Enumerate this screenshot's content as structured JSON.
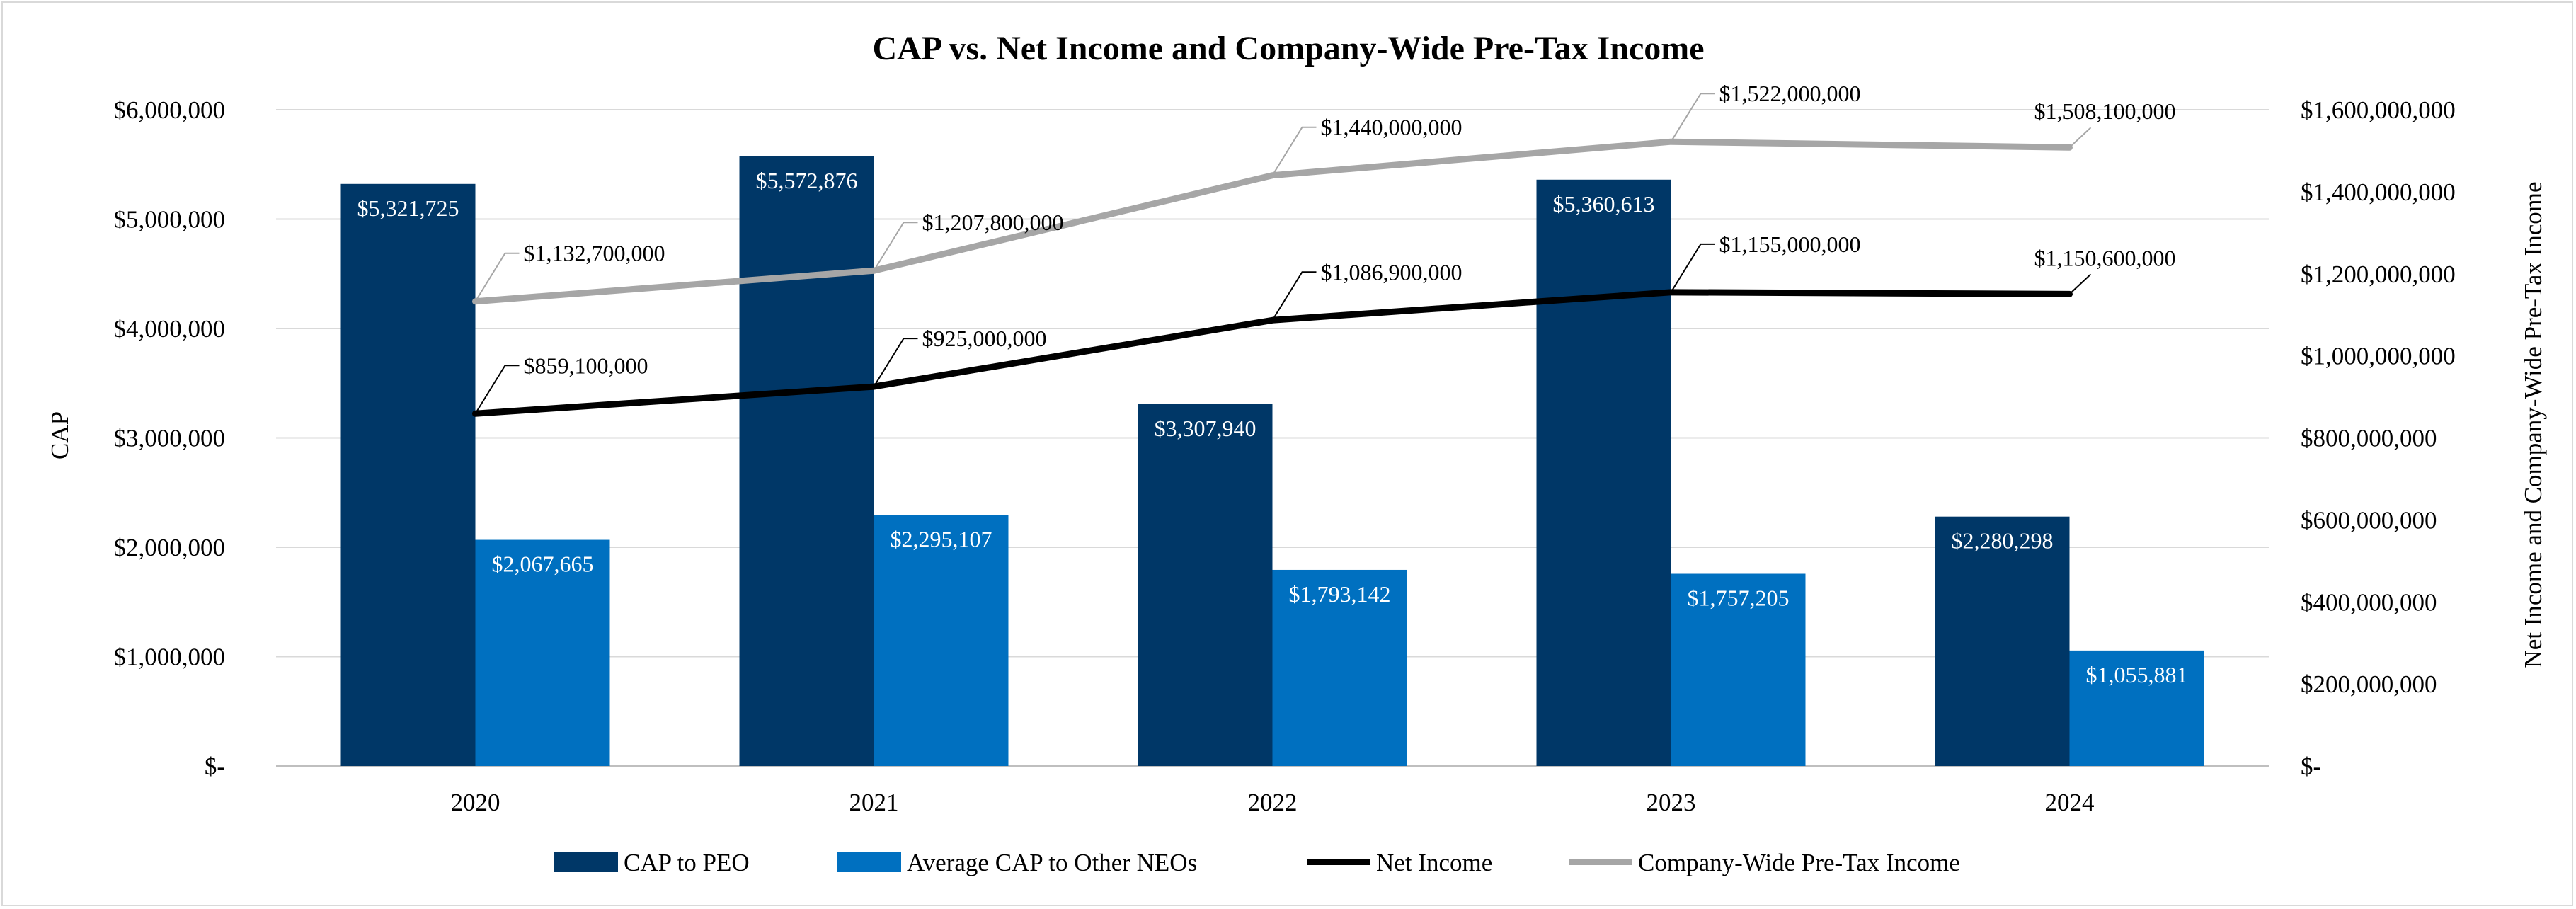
{
  "chart_data": {
    "type": "bar",
    "title": "CAP vs. Net Income and Company-Wide Pre-Tax Income",
    "categories": [
      "2020",
      "2021",
      "2022",
      "2023",
      "2024"
    ],
    "ylabel": "CAP",
    "ylabel_right": "Net Income and Company-Wide Pre-Tax Income",
    "ylim": [
      0,
      6000000
    ],
    "ylim_right": [
      0,
      1600000000
    ],
    "yticks_left": [
      "$-",
      "$1,000,000",
      "$2,000,000",
      "$3,000,000",
      "$4,000,000",
      "$5,000,000",
      "$6,000,000"
    ],
    "yticks_right": [
      "$-",
      "$200,000,000",
      "$400,000,000",
      "$600,000,000",
      "$800,000,000",
      "$1,000,000,000",
      "$1,200,000,000",
      "$1,400,000,000",
      "$1,600,000,000"
    ],
    "grid": true,
    "legend_position": "bottom",
    "series": [
      {
        "name": "CAP to PEO",
        "type": "bar",
        "axis": "left",
        "color": "#003767",
        "values": [
          5321725,
          5572876,
          3307940,
          5360613,
          2280298
        ],
        "labels": [
          "$5,321,725",
          "$5,572,876",
          "$3,307,940",
          "$5,360,613",
          "$2,280,298"
        ]
      },
      {
        "name": "Average CAP to Other NEOs",
        "type": "bar",
        "axis": "left",
        "color": "#0070c0",
        "values": [
          2067665,
          2295107,
          1793142,
          1757205,
          1055881
        ],
        "labels": [
          "$2,067,665",
          "$2,295,107",
          "$1,793,142",
          "$1,757,205",
          "$1,055,881"
        ]
      },
      {
        "name": "Net Income",
        "type": "line",
        "axis": "right",
        "color": "#000000",
        "values": [
          859100000,
          925000000,
          1086900000,
          1155000000,
          1150600000
        ],
        "labels": [
          "$859,100,000",
          "$925,000,000",
          "$1,086,900,000",
          "$1,155,000,000",
          "$1,150,600,000"
        ]
      },
      {
        "name": "Company-Wide Pre-Tax Income",
        "type": "line",
        "axis": "right",
        "color": "#a6a6a6",
        "values": [
          1132700000,
          1207800000,
          1440000000,
          1522000000,
          1508100000
        ],
        "labels": [
          "$1,132,700,000",
          "$1,207,800,000",
          "$1,440,000,000",
          "$1,522,000,000",
          "$1,508,100,000"
        ]
      }
    ]
  }
}
